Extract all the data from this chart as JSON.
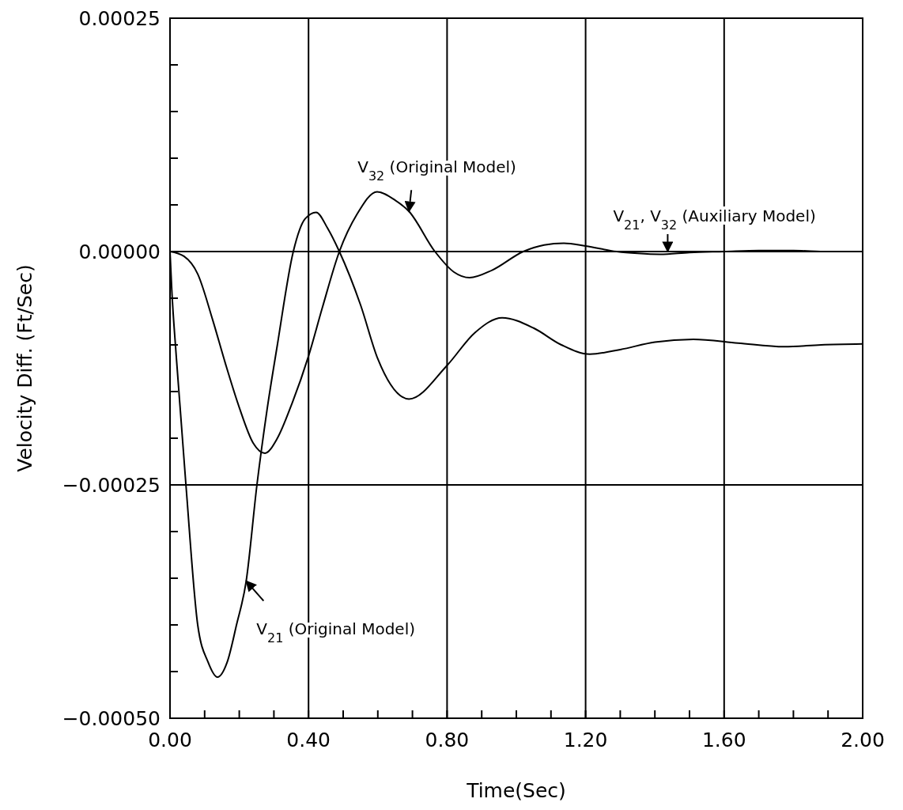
{
  "chart_data": {
    "type": "line",
    "xlabel": "Time(Sec)",
    "ylabel": "Velocity Diff. (Ft/Sec)",
    "xlim": [
      0,
      2
    ],
    "ylim": [
      -0.0005,
      0.00025
    ],
    "xticks": [
      {
        "value": 0,
        "label": "0.00"
      },
      {
        "value": 0.1,
        "label": null
      },
      {
        "value": 0.2,
        "label": null
      },
      {
        "value": 0.3,
        "label": null
      },
      {
        "value": 0.4,
        "label": "0.40"
      },
      {
        "value": 0.5,
        "label": null
      },
      {
        "value": 0.6,
        "label": null
      },
      {
        "value": 0.7,
        "label": null
      },
      {
        "value": 0.8,
        "label": "0.80"
      },
      {
        "value": 0.9,
        "label": null
      },
      {
        "value": 1.0,
        "label": null
      },
      {
        "value": 1.1,
        "label": null
      },
      {
        "value": 1.2,
        "label": "1.20"
      },
      {
        "value": 1.3,
        "label": null
      },
      {
        "value": 1.4,
        "label": null
      },
      {
        "value": 1.5,
        "label": null
      },
      {
        "value": 1.6,
        "label": "1.60"
      },
      {
        "value": 1.7,
        "label": null
      },
      {
        "value": 1.8,
        "label": null
      },
      {
        "value": 1.9,
        "label": null
      },
      {
        "value": 2.0,
        "label": "2.00"
      }
    ],
    "yticks": [
      {
        "value": -0.0005,
        "label": "−0.00050"
      },
      {
        "value": -0.00045,
        "label": null
      },
      {
        "value": -0.0004,
        "label": null
      },
      {
        "value": -0.00035,
        "label": null
      },
      {
        "value": -0.0003,
        "label": null
      },
      {
        "value": -0.00025,
        "label": "−0.00025"
      },
      {
        "value": -0.0002,
        "label": null
      },
      {
        "value": -0.00015,
        "label": null
      },
      {
        "value": -0.0001,
        "label": null
      },
      {
        "value": -5e-05,
        "label": null
      },
      {
        "value": 0,
        "label": "0.00000"
      },
      {
        "value": 5e-05,
        "label": null
      },
      {
        "value": 0.0001,
        "label": null
      },
      {
        "value": 0.00015,
        "label": null
      },
      {
        "value": 0.0002,
        "label": null
      },
      {
        "value": 0.00025,
        "label": "0.00025"
      }
    ],
    "grid": true,
    "marker": "none",
    "line_style": "solid",
    "series": [
      {
        "color": "#000000",
        "x": [
          0,
          0.005,
          0.018,
          0.046,
          0.08,
          0.11,
          0.137,
          0.165,
          0.192,
          0.22,
          0.251,
          0.28,
          0.31,
          0.356,
          0.39,
          0.422,
          0.455,
          0.489,
          0.55,
          0.6,
          0.69,
          0.8,
          0.88,
          0.959,
          1.05,
          1.13,
          1.212,
          1.3,
          1.4,
          1.511,
          1.64,
          1.774,
          1.88,
          2.0
        ],
        "values": [
          0,
          -4e-05,
          -0.000112,
          -0.00025,
          -0.0004,
          -0.00044,
          -0.000456,
          -0.00044,
          -0.0004,
          -0.000353,
          -0.00025,
          -0.00017,
          -0.0001,
          0,
          3.5e-05,
          4.2e-05,
          2.5e-05,
          0,
          -5.7e-05,
          -0.000115,
          -0.000158,
          -0.000122,
          -8.7e-05,
          -7.1e-05,
          -8.2e-05,
          -0.0001,
          -0.00011,
          -0.000105,
          -9.7e-05,
          -9.4e-05,
          -9.8e-05,
          -0.000102,
          -0.0001,
          -9.9e-05
        ]
      },
      {
        "color": "#000000",
        "x": [
          0,
          0.04,
          0.08,
          0.123,
          0.16,
          0.2,
          0.24,
          0.274,
          0.31,
          0.35,
          0.4,
          0.44,
          0.489,
          0.54,
          0.598,
          0.65,
          0.69,
          0.765,
          0.82,
          0.865,
          0.93,
          1.02,
          1.08,
          1.137,
          1.2,
          1.29,
          1.35,
          1.415,
          1.5,
          1.6,
          1.7,
          1.8,
          1.9,
          2.0
        ],
        "values": [
          0,
          -5e-06,
          -2.4e-05,
          -7.3e-05,
          -0.00012,
          -0.000167,
          -0.000205,
          -0.000216,
          -0.0002,
          -0.000165,
          -0.000112,
          -6e-05,
          0,
          4e-05,
          6.4e-05,
          5.5e-05,
          4.3e-05,
          0,
          -2.2e-05,
          -2.8e-05,
          -2e-05,
          0,
          7e-06,
          9e-06,
          6e-06,
          0,
          -2e-06,
          -3e-06,
          -1e-06,
          0,
          1e-06,
          1e-06,
          0,
          0
        ]
      }
    ],
    "annotations": [
      {
        "text": "V$_{32}$ (Original Model)",
        "x": 0.69,
        "y": 4.3e-05
      },
      {
        "text": "V$_{21}$ (Original Model)",
        "x": 0.22,
        "y": -0.000353
      },
      {
        "text": "V$_{21}$, V$_{32}$ (Auxiliary Model)",
        "x": 1.437,
        "y": 0
      }
    ]
  }
}
